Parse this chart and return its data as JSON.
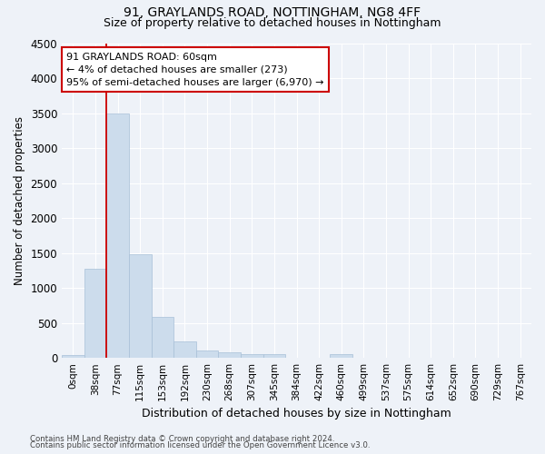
{
  "title1": "91, GRAYLANDS ROAD, NOTTINGHAM, NG8 4FF",
  "title2": "Size of property relative to detached houses in Nottingham",
  "xlabel": "Distribution of detached houses by size in Nottingham",
  "ylabel": "Number of detached properties",
  "bar_labels": [
    "0sqm",
    "38sqm",
    "77sqm",
    "115sqm",
    "153sqm",
    "192sqm",
    "230sqm",
    "268sqm",
    "307sqm",
    "345sqm",
    "384sqm",
    "422sqm",
    "460sqm",
    "499sqm",
    "537sqm",
    "575sqm",
    "614sqm",
    "652sqm",
    "690sqm",
    "729sqm",
    "767sqm"
  ],
  "bar_values": [
    40,
    1280,
    3500,
    1480,
    580,
    240,
    110,
    80,
    50,
    50,
    0,
    0,
    60,
    0,
    0,
    0,
    0,
    0,
    0,
    0,
    0
  ],
  "bar_color": "#ccdcec",
  "bar_edgecolor": "#a8c0d8",
  "bar_width": 1.0,
  "ylim": [
    0,
    4500
  ],
  "yticks": [
    0,
    500,
    1000,
    1500,
    2000,
    2500,
    3000,
    3500,
    4000,
    4500
  ],
  "red_line_x": 1.5,
  "red_line_color": "#cc0000",
  "annot_line1": "91 GRAYLANDS ROAD: 60sqm",
  "annot_line2": "← 4% of detached houses are smaller (273)",
  "annot_line3": "95% of semi-detached houses are larger (6,970) →",
  "annotation_box_color": "#ffffff",
  "annotation_box_edgecolor": "#cc0000",
  "footer1": "Contains HM Land Registry data © Crown copyright and database right 2024.",
  "footer2": "Contains public sector information licensed under the Open Government Licence v3.0.",
  "bg_color": "#eef2f8",
  "plot_bg_color": "#eef2f8",
  "grid_color": "#ffffff",
  "title1_fontsize": 10,
  "title2_fontsize": 9
}
